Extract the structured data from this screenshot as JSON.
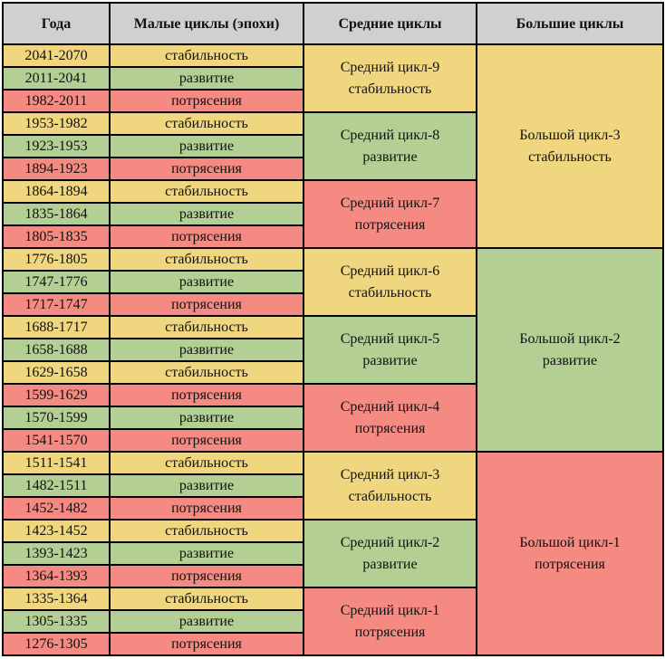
{
  "headers": [
    "Года",
    "Малые циклы (эпохи)",
    "Средние циклы",
    "Большие циклы"
  ],
  "colors": {
    "стабильность": "#efd67f",
    "развитие": "#b3cf93",
    "потрясения": "#f58a83",
    "header": "#d0d0d0"
  },
  "rows": [
    {
      "years": "2041-2070",
      "phase": "стабильность"
    },
    {
      "years": "2011-2041",
      "phase": "развитие"
    },
    {
      "years": "1982-2011",
      "phase": "потрясения"
    },
    {
      "years": "1953-1982",
      "phase": "стабильность"
    },
    {
      "years": "1923-1953",
      "phase": "развитие"
    },
    {
      "years": "1894-1923",
      "phase": "потрясения"
    },
    {
      "years": "1864-1894",
      "phase": "стабильность"
    },
    {
      "years": "1835-1864",
      "phase": "развитие"
    },
    {
      "years": "1805-1835",
      "phase": "потрясения"
    },
    {
      "years": "1776-1805",
      "phase": "стабильность"
    },
    {
      "years": "1747-1776",
      "phase": "развитие"
    },
    {
      "years": "1717-1747",
      "phase": "потрясения"
    },
    {
      "years": "1688-1717",
      "phase": "стабильность"
    },
    {
      "years": "1658-1688",
      "phase": "развитие"
    },
    {
      "years": "1629-1658",
      "phase": "стабильность"
    },
    {
      "years": "1599-1629",
      "phase": "потрясения"
    },
    {
      "years": "1570-1599",
      "phase": "развитие"
    },
    {
      "years": "1541-1570",
      "phase": "потрясения"
    },
    {
      "years": "1511-1541",
      "phase": "стабильность"
    },
    {
      "years": "1482-1511",
      "phase": "развитие"
    },
    {
      "years": "1452-1482",
      "phase": "потрясения"
    },
    {
      "years": "1423-1452",
      "phase": "стабильность"
    },
    {
      "years": "1393-1423",
      "phase": "развитие"
    },
    {
      "years": "1364-1393",
      "phase": "потрясения"
    },
    {
      "years": "1335-1364",
      "phase": "стабильность"
    },
    {
      "years": "1305-1335",
      "phase": "развитие"
    },
    {
      "years": "1276-1305",
      "phase": "потрясения"
    }
  ],
  "medium_cycles": [
    {
      "name": "Средний цикл-9",
      "phase": "стабильность"
    },
    {
      "name": "Средний цикл-8",
      "phase": "развитие"
    },
    {
      "name": "Средний цикл-7",
      "phase": "потрясения"
    },
    {
      "name": "Средний цикл-6",
      "phase": "стабильность"
    },
    {
      "name": "Средний цикл-5",
      "phase": "развитие"
    },
    {
      "name": "Средний цикл-4",
      "phase": "потрясения"
    },
    {
      "name": "Средний цикл-3",
      "phase": "стабильность"
    },
    {
      "name": "Средний цикл-2",
      "phase": "развитие"
    },
    {
      "name": "Средний цикл-1",
      "phase": "потрясения"
    }
  ],
  "big_cycles": [
    {
      "name": "Большой цикл-3",
      "phase": "стабильность"
    },
    {
      "name": "Большой цикл-2",
      "phase": "развитие"
    },
    {
      "name": "Большой цикл-1",
      "phase": "потрясения"
    }
  ]
}
